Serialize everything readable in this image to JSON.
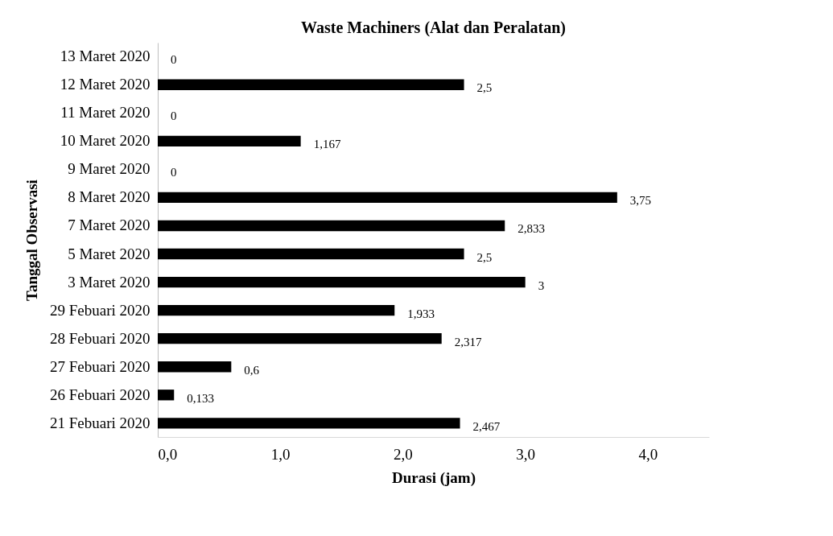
{
  "chart_data": {
    "type": "bar",
    "orientation": "horizontal",
    "title": "Waste Machiners (Alat dan Peralatan)",
    "xlabel": "Durasi (jam)",
    "ylabel": "Tanggal Observasi",
    "categories": [
      "13 Maret 2020",
      "12 Maret 2020",
      "11 Maret 2020",
      "10 Maret 2020",
      "9 Maret 2020",
      "8 Maret 2020",
      "7 Maret 2020",
      "5 Maret 2020",
      "3 Maret 2020",
      "29 Febuari 2020",
      "28 Febuari 2020",
      "27 Febuari 2020",
      "26 Febuari 2020",
      "21 Febuari 2020"
    ],
    "values": [
      0,
      2.5,
      0,
      1.167,
      0,
      3.75,
      2.833,
      2.5,
      3,
      1.933,
      2.317,
      0.6,
      0.133,
      2.467
    ],
    "value_labels": [
      "0",
      "2,5",
      "0",
      "1,167",
      "0",
      "3,75",
      "2,833",
      "2,5",
      "3",
      "1,933",
      "2,317",
      "0,6",
      "0,133",
      "2,467"
    ],
    "color": "#000000",
    "xlim": [
      0,
      4.5
    ],
    "xticks": [
      {
        "value": 0,
        "label": "0,0"
      },
      {
        "value": 1,
        "label": "1,0"
      },
      {
        "value": 2,
        "label": "2,0"
      },
      {
        "value": 3,
        "label": "3,0"
      },
      {
        "value": 4,
        "label": "4,0"
      }
    ],
    "grid": false
  }
}
